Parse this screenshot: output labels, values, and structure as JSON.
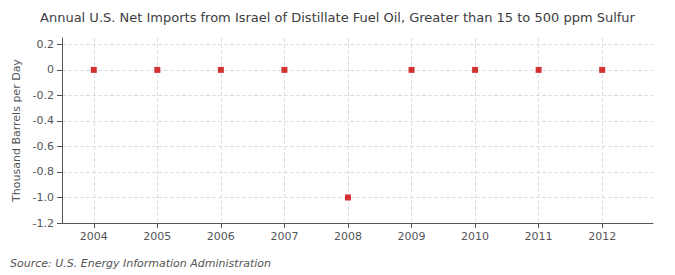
{
  "chart_data": {
    "type": "scatter",
    "title": "Annual U.S. Net Imports from Israel of Distillate Fuel Oil, Greater than 15 to 500 ppm Sulfur",
    "ylabel": "Thousand Barrels per Day",
    "source": "Source: U.S. Energy Information Administration",
    "x": [
      2004,
      2005,
      2006,
      2007,
      2008,
      2009,
      2010,
      2011,
      2012
    ],
    "values": [
      0.0,
      0.0,
      0.0,
      0.0,
      -1.0,
      0.0,
      0.0,
      0.0,
      0.0
    ],
    "color": "#cc0000",
    "marker": "square",
    "xlim": [
      2003.5,
      2012.8
    ],
    "xticks": [
      2004,
      2005,
      2006,
      2007,
      2008,
      2009,
      2010,
      2011,
      2012
    ],
    "ylim": [
      -1.2,
      0.25
    ],
    "yticks": [
      0.2,
      0.0,
      -0.2,
      -0.4,
      -0.6,
      -0.8,
      {
        "value": -1.0,
        "label": "-1.0"
      },
      -1.2
    ],
    "grid": true
  }
}
